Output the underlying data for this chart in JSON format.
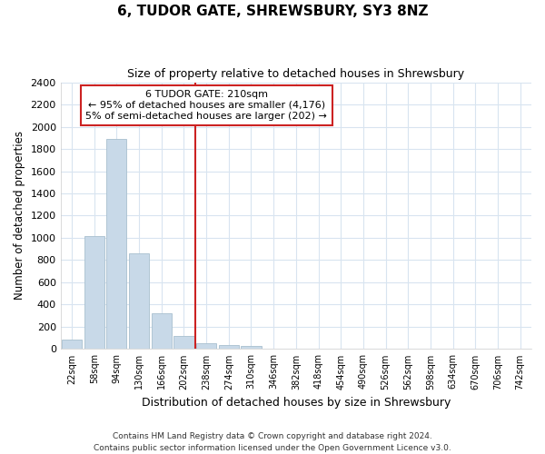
{
  "title": "6, TUDOR GATE, SHREWSBURY, SY3 8NZ",
  "subtitle": "Size of property relative to detached houses in Shrewsbury",
  "xlabel": "Distribution of detached houses by size in Shrewsbury",
  "ylabel": "Number of detached properties",
  "categories": [
    "22sqm",
    "58sqm",
    "94sqm",
    "130sqm",
    "166sqm",
    "202sqm",
    "238sqm",
    "274sqm",
    "310sqm",
    "346sqm",
    "382sqm",
    "418sqm",
    "454sqm",
    "490sqm",
    "526sqm",
    "562sqm",
    "598sqm",
    "634sqm",
    "670sqm",
    "706sqm",
    "742sqm"
  ],
  "values": [
    85,
    1020,
    1890,
    860,
    320,
    115,
    50,
    40,
    30,
    0,
    0,
    0,
    0,
    0,
    0,
    0,
    0,
    0,
    0,
    0,
    0
  ],
  "bar_color": "#c8d9e8",
  "bar_edgecolor": "#a8bfcf",
  "vline_x": 5.5,
  "vline_color": "#cc2222",
  "ann_line1": "6 TUDOR GATE: 210sqm",
  "ann_line2": "← 95% of detached houses are smaller (4,176)",
  "ann_line3": "5% of semi-detached houses are larger (202) →",
  "annotation_box_color": "#cc2222",
  "ylim": [
    0,
    2400
  ],
  "yticks": [
    0,
    200,
    400,
    600,
    800,
    1000,
    1200,
    1400,
    1600,
    1800,
    2000,
    2200,
    2400
  ],
  "footer_line1": "Contains HM Land Registry data © Crown copyright and database right 2024.",
  "footer_line2": "Contains public sector information licensed under the Open Government Licence v3.0.",
  "bg_color": "#ffffff",
  "plot_bg_color": "#ffffff",
  "grid_color": "#d8e4f0"
}
